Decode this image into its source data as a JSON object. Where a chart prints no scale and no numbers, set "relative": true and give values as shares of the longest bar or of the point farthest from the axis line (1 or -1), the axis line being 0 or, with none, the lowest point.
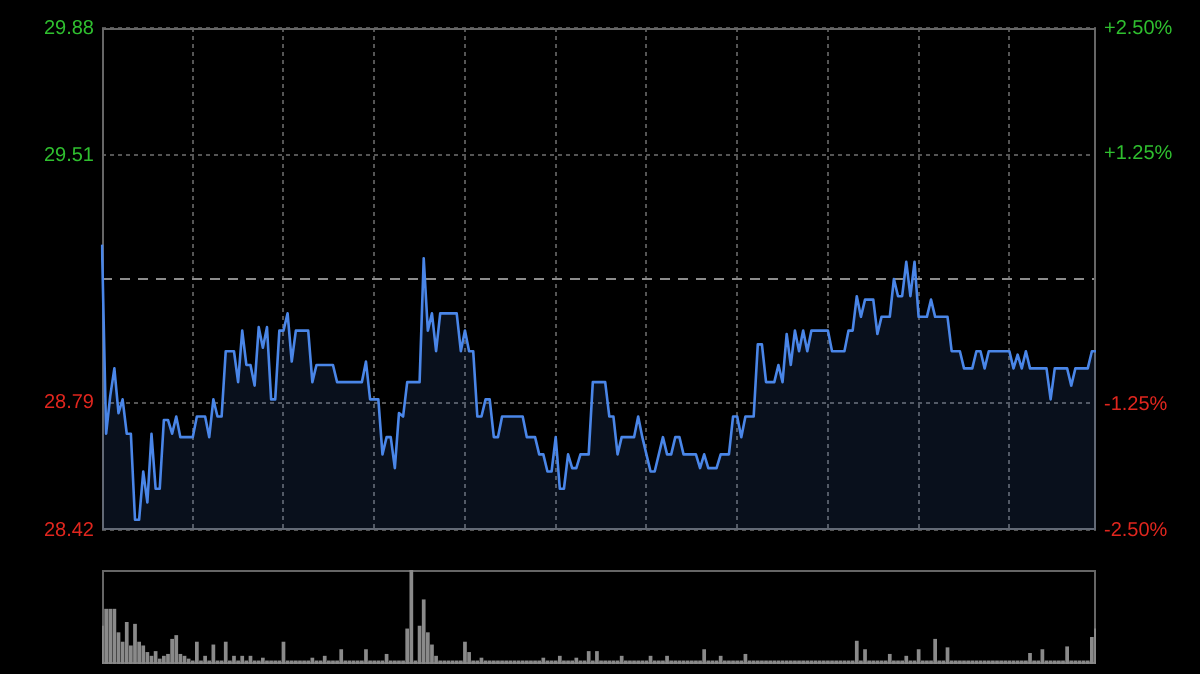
{
  "chart_data": [
    {
      "type": "area",
      "categories": [
        null,
        null,
        null,
        null,
        null,
        null,
        null,
        null,
        null,
        null,
        null,
        null,
        null,
        null,
        null,
        null,
        null,
        null,
        null,
        null,
        null,
        null,
        null,
        null,
        null,
        null,
        null,
        null,
        null,
        null,
        null,
        null,
        null,
        null,
        null,
        null,
        null,
        null,
        null,
        null,
        null,
        null,
        null,
        null,
        null,
        null,
        null,
        null,
        null,
        null,
        null,
        null,
        null,
        null,
        null,
        null,
        null,
        null,
        null,
        null,
        null,
        null,
        null,
        null,
        null,
        null,
        null,
        null,
        null,
        null,
        null,
        null,
        null,
        null,
        null,
        null,
        null,
        null,
        null,
        null,
        null,
        null,
        null,
        null,
        null,
        null,
        null,
        null,
        null,
        null,
        null,
        null,
        null,
        null,
        null,
        null,
        null,
        null,
        null,
        null,
        null,
        null,
        null,
        null,
        null,
        null,
        null,
        null,
        null,
        null,
        null,
        null,
        null,
        null,
        null,
        null,
        null,
        null,
        null,
        null,
        null,
        null,
        null,
        null,
        null,
        null,
        null,
        null,
        null,
        null,
        null,
        null,
        null,
        null,
        null,
        null,
        null,
        null,
        null,
        null,
        null,
        null,
        null,
        null,
        null,
        null,
        null,
        null,
        null,
        null,
        null,
        null,
        null,
        null,
        null,
        null,
        null,
        null,
        null,
        null,
        null,
        null,
        null,
        null,
        null,
        null,
        null,
        null,
        null,
        null,
        null,
        null,
        null,
        null,
        null,
        null,
        null,
        null,
        null,
        null,
        null,
        null,
        null,
        null,
        null,
        null,
        null,
        null,
        null,
        null,
        null,
        null,
        null,
        null,
        null,
        null,
        null,
        null,
        null,
        null,
        null,
        null,
        null,
        null,
        null,
        null,
        null,
        null,
        null,
        null,
        null,
        null,
        null,
        null,
        null,
        null,
        null,
        null,
        null,
        null,
        null,
        null,
        null,
        null,
        null,
        null,
        null,
        null,
        null,
        null,
        null,
        null,
        null,
        null,
        null,
        null,
        null,
        null,
        null,
        null,
        null,
        null
      ],
      "series": [
        {
          "color": "#4a86e8",
          "values": [
            29.25,
            28.7,
            28.81,
            28.89,
            28.76,
            28.8,
            28.7,
            28.7,
            28.45,
            28.45,
            28.59,
            28.5,
            28.7,
            28.54,
            28.54,
            28.74,
            28.74,
            28.7,
            28.75,
            28.69,
            28.69,
            28.69,
            28.69,
            28.75,
            28.75,
            28.75,
            28.69,
            28.8,
            28.75,
            28.75,
            28.94,
            28.94,
            28.94,
            28.85,
            29.0,
            28.9,
            28.9,
            28.84,
            29.01,
            28.95,
            29.01,
            28.8,
            28.8,
            29.0,
            29.0,
            29.05,
            28.91,
            29.0,
            29.0,
            29.0,
            29.0,
            28.85,
            28.9,
            28.9,
            28.9,
            28.9,
            28.9,
            28.85,
            28.85,
            28.85,
            28.85,
            28.85,
            28.85,
            28.85,
            28.91,
            28.8,
            28.8,
            28.8,
            28.64,
            28.69,
            28.69,
            28.6,
            28.76,
            28.75,
            28.85,
            28.85,
            28.85,
            28.85,
            29.21,
            29.0,
            29.05,
            28.94,
            29.05,
            29.05,
            29.05,
            29.05,
            29.05,
            28.94,
            29.0,
            28.94,
            28.94,
            28.75,
            28.75,
            28.8,
            28.8,
            28.69,
            28.69,
            28.75,
            28.75,
            28.75,
            28.75,
            28.75,
            28.75,
            28.69,
            28.69,
            28.69,
            28.64,
            28.64,
            28.59,
            28.59,
            28.69,
            28.54,
            28.54,
            28.64,
            28.6,
            28.6,
            28.64,
            28.64,
            28.64,
            28.85,
            28.85,
            28.85,
            28.85,
            28.75,
            28.75,
            28.64,
            28.69,
            28.69,
            28.69,
            28.69,
            28.75,
            28.69,
            28.64,
            28.59,
            28.59,
            28.64,
            28.69,
            28.64,
            28.64,
            28.69,
            28.69,
            28.64,
            28.64,
            28.64,
            28.64,
            28.6,
            28.64,
            28.6,
            28.6,
            28.6,
            28.64,
            28.64,
            28.64,
            28.75,
            28.75,
            28.69,
            28.75,
            28.75,
            28.75,
            28.96,
            28.96,
            28.85,
            28.85,
            28.85,
            28.9,
            28.85,
            28.99,
            28.9,
            29.0,
            28.94,
            29.0,
            28.94,
            29.0,
            29.0,
            29.0,
            29.0,
            29.0,
            28.94,
            28.94,
            28.94,
            28.94,
            29.0,
            29.0,
            29.1,
            29.04,
            29.09,
            29.09,
            29.09,
            28.99,
            29.04,
            29.04,
            29.04,
            29.15,
            29.1,
            29.1,
            29.2,
            29.1,
            29.2,
            29.04,
            29.04,
            29.04,
            29.09,
            29.04,
            29.04,
            29.04,
            29.04,
            28.94,
            28.94,
            28.94,
            28.89,
            28.89,
            28.89,
            28.94,
            28.94,
            28.89,
            28.94,
            28.94,
            28.94,
            28.94,
            28.94,
            28.94,
            28.89,
            28.93,
            28.89,
            28.94,
            28.89,
            28.89,
            28.89,
            28.89,
            28.89,
            28.8,
            28.89,
            28.89,
            28.89,
            28.89,
            28.84,
            28.89,
            28.89,
            28.89,
            28.89,
            28.94,
            28.94
          ]
        }
      ],
      "ylim": [
        28.42,
        29.88
      ],
      "yticks": [
        28.42,
        28.79,
        29.51,
        29.88
      ],
      "y2lim": [
        -2.5,
        2.5
      ],
      "y2ticks": [
        {
          "value": -2.5,
          "label": "-2.50%"
        },
        {
          "value": -1.25,
          "label": "-1.25%"
        },
        {
          "value": 1.25,
          "label": "+1.25%"
        },
        {
          "value": 2.5,
          "label": "+2.50%"
        }
      ],
      "ref_lines": [
        {
          "axis": "y",
          "value": 29.15,
          "color": "#8c8c8c",
          "line_style": "dashed"
        }
      ],
      "grid": true,
      "legend": false,
      "marker": "none",
      "line_style": "solid",
      "tick_labels": "y"
    },
    {
      "type": "bar",
      "relative": true,
      "categories": [
        null,
        null,
        null,
        null,
        null,
        null,
        null,
        null,
        null,
        null,
        null,
        null,
        null,
        null,
        null,
        null,
        null,
        null,
        null,
        null,
        null,
        null,
        null,
        null,
        null,
        null,
        null,
        null,
        null,
        null,
        null,
        null,
        null,
        null,
        null,
        null,
        null,
        null,
        null,
        null,
        null,
        null,
        null,
        null,
        null,
        null,
        null,
        null,
        null,
        null,
        null,
        null,
        null,
        null,
        null,
        null,
        null,
        null,
        null,
        null,
        null,
        null,
        null,
        null,
        null,
        null,
        null,
        null,
        null,
        null,
        null,
        null,
        null,
        null,
        null,
        null,
        null,
        null,
        null,
        null,
        null,
        null,
        null,
        null,
        null,
        null,
        null,
        null,
        null,
        null,
        null,
        null,
        null,
        null,
        null,
        null,
        null,
        null,
        null,
        null,
        null,
        null,
        null,
        null,
        null,
        null,
        null,
        null,
        null,
        null,
        null,
        null,
        null,
        null,
        null,
        null,
        null,
        null,
        null,
        null,
        null,
        null,
        null,
        null,
        null,
        null,
        null,
        null,
        null,
        null,
        null,
        null,
        null,
        null,
        null,
        null,
        null,
        null,
        null,
        null,
        null,
        null,
        null,
        null,
        null,
        null,
        null,
        null,
        null,
        null,
        null,
        null,
        null,
        null,
        null,
        null,
        null,
        null,
        null,
        null,
        null,
        null,
        null,
        null,
        null,
        null,
        null,
        null,
        null,
        null,
        null,
        null,
        null,
        null,
        null,
        null,
        null,
        null,
        null,
        null,
        null,
        null,
        null,
        null,
        null,
        null,
        null,
        null,
        null,
        null,
        null,
        null,
        null,
        null,
        null,
        null,
        null,
        null,
        null,
        null,
        null,
        null,
        null,
        null,
        null,
        null,
        null,
        null,
        null,
        null,
        null,
        null,
        null,
        null,
        null,
        null,
        null,
        null,
        null,
        null,
        null,
        null,
        null,
        null,
        null,
        null,
        null,
        null,
        null,
        null,
        null,
        null,
        null,
        null,
        null,
        null,
        null,
        null,
        null,
        null,
        null,
        null
      ],
      "values": [
        0.4,
        0.58,
        0.58,
        0.58,
        0.33,
        0.23,
        0.44,
        0.19,
        0.42,
        0.23,
        0.19,
        0.12,
        0.08,
        0.13,
        0.05,
        0.08,
        0.1,
        0.26,
        0.3,
        0.1,
        0.08,
        0.05,
        0.03,
        0.23,
        0.03,
        0.08,
        0.03,
        0.2,
        0.03,
        0.03,
        0.23,
        0.03,
        0.08,
        0.03,
        0.08,
        0.03,
        0.08,
        0.03,
        0.03,
        0.06,
        0.03,
        0.03,
        0.03,
        0.03,
        0.23,
        0.03,
        0.03,
        0.03,
        0.03,
        0.03,
        0.03,
        0.06,
        0.03,
        0.03,
        0.08,
        0.03,
        0.03,
        0.03,
        0.15,
        0.03,
        0.03,
        0.03,
        0.03,
        0.03,
        0.15,
        0.03,
        0.03,
        0.03,
        0.03,
        0.1,
        0.03,
        0.03,
        0.03,
        0.03,
        0.37,
        1,
        0.03,
        0.4,
        0.68,
        0.33,
        0.2,
        0.08,
        0.03,
        0.03,
        0.03,
        0.03,
        0.03,
        0.03,
        0.23,
        0.12,
        0.03,
        0.03,
        0.06,
        0.03,
        0.03,
        0.03,
        0.03,
        0.03,
        0.03,
        0.03,
        0.03,
        0.03,
        0.03,
        0.03,
        0.03,
        0.03,
        0.03,
        0.06,
        0.03,
        0.03,
        0.03,
        0.08,
        0.03,
        0.03,
        0.03,
        0.06,
        0.03,
        0.03,
        0.13,
        0.03,
        0.13,
        0.03,
        0.03,
        0.03,
        0.03,
        0.03,
        0.08,
        0.03,
        0.03,
        0.03,
        0.03,
        0.03,
        0.03,
        0.08,
        0.03,
        0.03,
        0.03,
        0.08,
        0.03,
        0.03,
        0.03,
        0.03,
        0.03,
        0.03,
        0.03,
        0.03,
        0.15,
        0.03,
        0.03,
        0.03,
        0.08,
        0.03,
        0.03,
        0.03,
        0.03,
        0.03,
        0.1,
        0.03,
        0.03,
        0.03,
        0.03,
        0.03,
        0.03,
        0.03,
        0.03,
        0.03,
        0.03,
        0.03,
        0.03,
        0.03,
        0.03,
        0.03,
        0.03,
        0.03,
        0.03,
        0.03,
        0.03,
        0.03,
        0.03,
        0.03,
        0.03,
        0.03,
        0.03,
        0.24,
        0.03,
        0.15,
        0.03,
        0.03,
        0.03,
        0.03,
        0.03,
        0.1,
        0.03,
        0.03,
        0.03,
        0.08,
        0.03,
        0.03,
        0.15,
        0.03,
        0.03,
        0.03,
        0.26,
        0.03,
        0.03,
        0.17,
        0.03,
        0.03,
        0.03,
        0.03,
        0.03,
        0.03,
        0.03,
        0.03,
        0.03,
        0.03,
        0.03,
        0.03,
        0.03,
        0.03,
        0.03,
        0.03,
        0.03,
        0.03,
        0.03,
        0.11,
        0.03,
        0.03,
        0.15,
        0.03,
        0.03,
        0.03,
        0.03,
        0.03,
        0.18,
        0.03,
        0.03,
        0.03,
        0.03,
        0.03,
        0.28,
        0.37
      ],
      "color": "#8a8a8a",
      "grid": false,
      "legend": false,
      "tick_labels": false
    }
  ]
}
